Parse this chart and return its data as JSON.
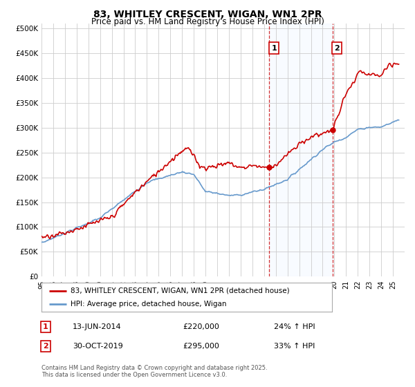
{
  "title1": "83, WHITLEY CRESCENT, WIGAN, WN1 2PR",
  "title2": "Price paid vs. HM Land Registry's House Price Index (HPI)",
  "legend_label1": "83, WHITLEY CRESCENT, WIGAN, WN1 2PR (detached house)",
  "legend_label2": "HPI: Average price, detached house, Wigan",
  "annotation1_date": "13-JUN-2014",
  "annotation1_price": "£220,000",
  "annotation1_hpi": "24% ↑ HPI",
  "annotation1_year": 2014.45,
  "annotation1_value": 220000,
  "annotation2_date": "30-OCT-2019",
  "annotation2_price": "£295,000",
  "annotation2_hpi": "33% ↑ HPI",
  "annotation2_year": 2019.83,
  "annotation2_value": 295000,
  "footnote": "Contains HM Land Registry data © Crown copyright and database right 2025.\nThis data is licensed under the Open Government Licence v3.0.",
  "line1_color": "#cc0000",
  "line2_color": "#6699cc",
  "shade_color": "#ddeeff",
  "background_color": "#ffffff",
  "grid_color": "#cccccc",
  "ylim": [
    0,
    510000
  ],
  "yticks": [
    0,
    50000,
    100000,
    150000,
    200000,
    250000,
    300000,
    350000,
    400000,
    450000,
    500000
  ],
  "xmin": 1995,
  "xmax": 2026
}
